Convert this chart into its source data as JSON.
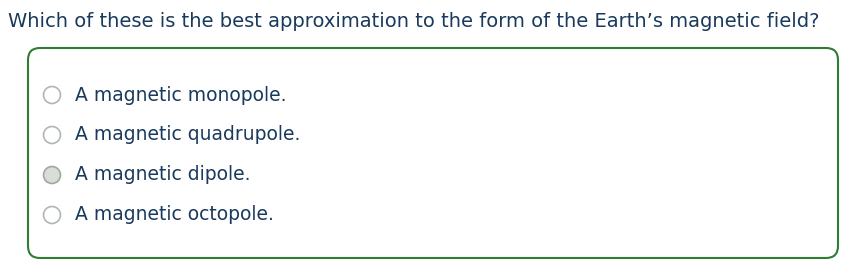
{
  "question": "Which of these is the best approximation to the form of the Earth’s magnetic field?",
  "options": [
    "A magnetic monopole.",
    "A magnetic quadrupole.",
    "A magnetic dipole.",
    "A magnetic octopole."
  ],
  "selected_index": 2,
  "background_color": "#ffffff",
  "question_color": "#1a3a5c",
  "option_color": "#1a3a5c",
  "box_border_color": "#2e7d32",
  "radio_border_color_normal": "#b0b8b0",
  "radio_fill_normal": "#ffffff",
  "radio_border_color_selected": "#a0a8a0",
  "radio_fill_selected": "#d8ddd8",
  "question_fontsize": 14,
  "option_fontsize": 13.5,
  "fig_width": 8.58,
  "fig_height": 2.62,
  "dpi": 100
}
